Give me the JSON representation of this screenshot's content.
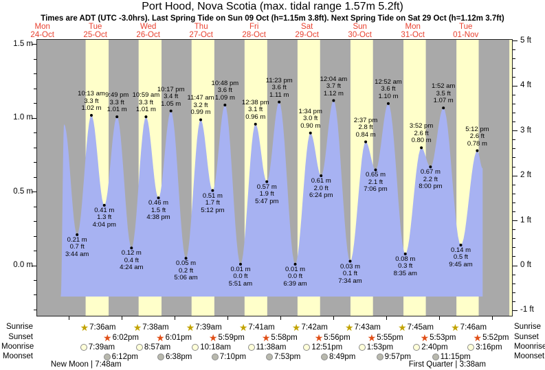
{
  "title": "Port Hood, Nova Scotia (max. tidal range 1.57m 5.2ft)",
  "subtitle": "Times are ADT (UTC -3.0hrs). Last Spring Tide on Sun 09 Oct (h=1.15m 3.8ft). Next Spring Tide on Sat 29 Oct (h=1.12m 3.7ft)",
  "day_labels": [
    {
      "weekday": "Mon",
      "date": "24-Oct"
    },
    {
      "weekday": "Tue",
      "date": "25-Oct"
    },
    {
      "weekday": "Wed",
      "date": "26-Oct"
    },
    {
      "weekday": "Thu",
      "date": "27-Oct"
    },
    {
      "weekday": "Fri",
      "date": "28-Oct"
    },
    {
      "weekday": "Sat",
      "date": "29-Oct"
    },
    {
      "weekday": "Sun",
      "date": "30-Oct"
    },
    {
      "weekday": "Mon",
      "date": "31-Oct"
    },
    {
      "weekday": "Tue",
      "date": "01-Nov"
    }
  ],
  "axes": {
    "left": {
      "unit": "m",
      "major": [
        {
          "v": 1.5,
          "label": "1.5 m"
        },
        {
          "v": 1.0,
          "label": "1.0 m"
        },
        {
          "v": 0.5,
          "label": "0.5 m"
        },
        {
          "v": 0.0,
          "label": "0.0 m"
        }
      ]
    },
    "right": {
      "unit": "ft",
      "major": [
        {
          "v": 5,
          "label": "5 ft"
        },
        {
          "v": 4,
          "label": "4 ft"
        },
        {
          "v": 3,
          "label": "3 ft"
        },
        {
          "v": 2,
          "label": "2 ft"
        },
        {
          "v": 1,
          "label": "1 ft"
        },
        {
          "v": 0,
          "label": "0 ft"
        },
        {
          "v": -1,
          "label": "-1 ft"
        }
      ]
    }
  },
  "chart_data": {
    "type": "area",
    "title": "Port Hood, Nova Scotia tide heights",
    "x_axis": "days Mon 24-Oct through Tue 01-Nov (labels at noon of each day)",
    "ylabel_left": "height (m)",
    "ylabel_right": "height (ft)",
    "ylim_m": [
      -0.35,
      1.54
    ],
    "grid": false,
    "legend": false,
    "tide_extremes": [
      {
        "day": 0,
        "time": "8:20 pm",
        "m": -0.21,
        "type": "edge",
        "annotated": false
      },
      {
        "day": 0,
        "time": "9:50 pm",
        "m": 0.96,
        "type": "H",
        "annotated": false
      },
      {
        "day": 1,
        "time": "3:44 am",
        "m": 0.21,
        "m_label": "0.21 m",
        "ft_label": "0.7 ft",
        "type": "L",
        "annotated": true
      },
      {
        "day": 1,
        "time": "10:13 am",
        "m": 1.02,
        "m_label": "1.02 m",
        "ft_label": "3.3 ft",
        "type": "H",
        "annotated": true
      },
      {
        "day": 1,
        "time": "4:04 pm",
        "m": 0.41,
        "m_label": "0.41 m",
        "ft_label": "1.3 ft",
        "type": "L",
        "annotated": true
      },
      {
        "day": 1,
        "time": "9:49 pm",
        "m": 1.01,
        "m_label": "1.01 m",
        "ft_label": "3.3 ft",
        "type": "H",
        "annotated": true
      },
      {
        "day": 2,
        "time": "4:24 am",
        "m": 0.12,
        "m_label": "0.12 m",
        "ft_label": "0.4 ft",
        "type": "L",
        "annotated": true
      },
      {
        "day": 2,
        "time": "10:59 am",
        "m": 1.01,
        "m_label": "1.01 m",
        "ft_label": "3.3 ft",
        "type": "H",
        "annotated": true
      },
      {
        "day": 2,
        "time": "4:38 pm",
        "m": 0.46,
        "m_label": "0.46 m",
        "ft_label": "1.5 ft",
        "type": "L",
        "annotated": true
      },
      {
        "day": 2,
        "time": "10:17 pm",
        "m": 1.05,
        "m_label": "1.05 m",
        "ft_label": "3.4 ft",
        "type": "H",
        "annotated": true
      },
      {
        "day": 3,
        "time": "5:06 am",
        "m": 0.05,
        "m_label": "0.05 m",
        "ft_label": "0.2 ft",
        "type": "L",
        "annotated": true
      },
      {
        "day": 3,
        "time": "11:47 am",
        "m": 0.99,
        "m_label": "0.99 m",
        "ft_label": "3.2 ft",
        "type": "H",
        "annotated": true
      },
      {
        "day": 3,
        "time": "5:12 pm",
        "m": 0.51,
        "m_label": "0.51 m",
        "ft_label": "1.7 ft",
        "type": "L",
        "annotated": true
      },
      {
        "day": 3,
        "time": "10:48 pm",
        "m": 1.09,
        "m_label": "1.09 m",
        "ft_label": "3.6 ft",
        "type": "H",
        "annotated": true
      },
      {
        "day": 4,
        "time": "5:51 am",
        "m": 0.01,
        "m_label": "0.01 m",
        "ft_label": "0.0 ft",
        "type": "L",
        "annotated": true
      },
      {
        "day": 4,
        "time": "12:38 pm",
        "m": 0.96,
        "m_label": "0.96 m",
        "ft_label": "3.1 ft",
        "type": "H",
        "annotated": true
      },
      {
        "day": 4,
        "time": "5:47 pm",
        "m": 0.57,
        "m_label": "0.57 m",
        "ft_label": "1.9 ft",
        "type": "L",
        "annotated": true
      },
      {
        "day": 4,
        "time": "11:23 pm",
        "m": 1.11,
        "m_label": "1.11 m",
        "ft_label": "3.6 ft",
        "type": "H",
        "annotated": true
      },
      {
        "day": 5,
        "time": "6:39 am",
        "m": 0.01,
        "m_label": "0.01 m",
        "ft_label": "0.0 ft",
        "type": "L",
        "annotated": true
      },
      {
        "day": 5,
        "time": "1:34 pm",
        "m": 0.9,
        "m_label": "0.90 m",
        "ft_label": "3.0 ft",
        "type": "H",
        "annotated": true
      },
      {
        "day": 5,
        "time": "6:24 pm",
        "m": 0.61,
        "m_label": "0.61 m",
        "ft_label": "2.0 ft",
        "type": "L",
        "annotated": true
      },
      {
        "day": 6,
        "time": "12:04 am",
        "m": 1.12,
        "m_label": "1.12 m",
        "ft_label": "3.7 ft",
        "type": "H",
        "annotated": true
      },
      {
        "day": 6,
        "time": "7:34 am",
        "m": 0.03,
        "m_label": "0.03 m",
        "ft_label": "0.1 ft",
        "type": "L",
        "annotated": true
      },
      {
        "day": 6,
        "time": "2:37 pm",
        "m": 0.84,
        "m_label": "0.84 m",
        "ft_label": "2.8 ft",
        "type": "H",
        "annotated": true
      },
      {
        "day": 6,
        "time": "7:06 pm",
        "m": 0.65,
        "m_label": "0.65 m",
        "ft_label": "2.1 ft",
        "type": "L",
        "annotated": true
      },
      {
        "day": 7,
        "time": "12:52 am",
        "m": 1.1,
        "m_label": "1.10 m",
        "ft_label": "3.6 ft",
        "type": "H",
        "annotated": true
      },
      {
        "day": 7,
        "time": "8:35 am",
        "m": 0.08,
        "m_label": "0.08 m",
        "ft_label": "0.3 ft",
        "type": "L",
        "annotated": true
      },
      {
        "day": 7,
        "time": "3:52 pm",
        "m": 0.8,
        "m_label": "0.80 m",
        "ft_label": "2.6 ft",
        "type": "H",
        "annotated": true
      },
      {
        "day": 7,
        "time": "8:00 pm",
        "m": 0.67,
        "m_label": "0.67 m",
        "ft_label": "2.2 ft",
        "type": "L",
        "annotated": true
      },
      {
        "day": 8,
        "time": "1:52 am",
        "m": 1.07,
        "m_label": "1.07 m",
        "ft_label": "3.5 ft",
        "type": "H",
        "annotated": true
      },
      {
        "day": 8,
        "time": "9:45 am",
        "m": 0.14,
        "m_label": "0.14 m",
        "ft_label": "0.5 ft",
        "type": "L",
        "annotated": true
      },
      {
        "day": 8,
        "time": "5:12 pm",
        "m": 0.78,
        "m_label": "0.78 m",
        "ft_label": "2.6 ft",
        "type": "H",
        "annotated": true
      },
      {
        "day": 8,
        "time": "7:40 pm",
        "m": 0.66,
        "type": "edge",
        "annotated": false
      }
    ]
  },
  "astro": {
    "rows": [
      {
        "id": "sunrise",
        "label": "Sunrise",
        "icon": "sunrise-star",
        "items": [
          {
            "day": 1,
            "time": "7:36am"
          },
          {
            "day": 2,
            "time": "7:38am"
          },
          {
            "day": 3,
            "time": "7:39am"
          },
          {
            "day": 4,
            "time": "7:41am"
          },
          {
            "day": 5,
            "time": "7:42am"
          },
          {
            "day": 6,
            "time": "7:43am"
          },
          {
            "day": 7,
            "time": "7:45am"
          },
          {
            "day": 8,
            "time": "7:46am"
          }
        ]
      },
      {
        "id": "sunset",
        "label": "Sunset",
        "icon": "sunset-star",
        "items": [
          {
            "day": 1,
            "time": "6:02pm"
          },
          {
            "day": 2,
            "time": "6:01pm"
          },
          {
            "day": 3,
            "time": "5:59pm"
          },
          {
            "day": 4,
            "time": "5:58pm"
          },
          {
            "day": 5,
            "time": "5:56pm"
          },
          {
            "day": 6,
            "time": "5:55pm"
          },
          {
            "day": 7,
            "time": "5:53pm"
          },
          {
            "day": 8,
            "time": "5:52pm"
          }
        ]
      },
      {
        "id": "moonrise",
        "label": "Moonrise",
        "icon": "moonrise-circle",
        "items": [
          {
            "day": 1,
            "time": "7:39am"
          },
          {
            "day": 2,
            "time": "8:57am"
          },
          {
            "day": 3,
            "time": "10:18am"
          },
          {
            "day": 4,
            "time": "11:38am"
          },
          {
            "day": 5,
            "time": "12:51pm"
          },
          {
            "day": 6,
            "time": "1:53pm"
          },
          {
            "day": 7,
            "time": "2:40pm"
          },
          {
            "day": 8,
            "time": "3:16pm"
          }
        ]
      },
      {
        "id": "moonset",
        "label": "Moonset",
        "icon": "moonset-circle",
        "items": [
          {
            "day": 1,
            "time": "6:12pm"
          },
          {
            "day": 2,
            "time": "6:38pm"
          },
          {
            "day": 3,
            "time": "7:10pm"
          },
          {
            "day": 4,
            "time": "7:53pm"
          },
          {
            "day": 5,
            "time": "8:49pm"
          },
          {
            "day": 6,
            "time": "9:57pm"
          },
          {
            "day": 7,
            "time": "11:15pm"
          }
        ]
      }
    ],
    "events": [
      {
        "label": "New Moon | 7:48am",
        "day": 1,
        "time": "7:48am"
      },
      {
        "label": "First Quarter | 3:38am",
        "day": 8,
        "time": "3:38am"
      }
    ]
  },
  "colors": {
    "night_bg": "#a9a9a9",
    "day_bg": "#ffffca",
    "tide_fill": "#a7b2f2",
    "day_label_red": "#e8402f",
    "sunrise_star": "#c2a300",
    "sunset_star": "#e04f18",
    "moonrise_fill": "#ffffd9",
    "moonset_fill": "#b9b9ae",
    "moon_border": "#8a8a8a",
    "annotation_text": "#000000"
  }
}
